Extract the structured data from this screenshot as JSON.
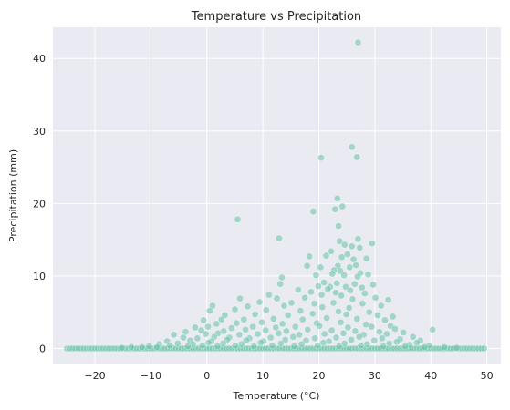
{
  "chart_data": {
    "type": "scatter",
    "title": "Temperature vs Precipitation",
    "xlabel": "Temperature (°C)",
    "ylabel": "Precipitation (mm)",
    "xlim": [
      -27.5,
      52.5
    ],
    "ylim": [
      -2.2,
      44.3
    ],
    "xticks": [
      -20,
      -10,
      0,
      10,
      20,
      30,
      40,
      50
    ],
    "yticks": [
      0,
      10,
      20,
      30,
      40
    ],
    "xtick_labels": [
      "−20",
      "−10",
      "0",
      "10",
      "20",
      "30",
      "40",
      "50"
    ],
    "ytick_labels": [
      "0",
      "10",
      "20",
      "30",
      "40"
    ],
    "grid": true,
    "legend": "none",
    "colors": {
      "point": "#66c2a5",
      "background": "#eaeaf2",
      "grid": "#ffffff"
    },
    "baseline_points": {
      "y": 0,
      "x_range": [
        -25,
        49.5
      ],
      "x_step": 0.5
    },
    "points": [
      [
        27.0,
        42.2
      ],
      [
        25.9,
        27.8
      ],
      [
        26.8,
        26.4
      ],
      [
        20.4,
        26.3
      ],
      [
        23.3,
        20.7
      ],
      [
        22.9,
        19.2
      ],
      [
        24.2,
        19.6
      ],
      [
        19.0,
        18.9
      ],
      [
        5.5,
        17.8
      ],
      [
        23.5,
        16.9
      ],
      [
        12.9,
        15.2
      ],
      [
        27.0,
        15.1
      ],
      [
        29.5,
        14.5
      ],
      [
        23.7,
        14.8
      ],
      [
        24.6,
        14.3
      ],
      [
        25.9,
        14.1
      ],
      [
        27.3,
        13.9
      ],
      [
        22.2,
        13.4
      ],
      [
        25.1,
        13.0
      ],
      [
        21.3,
        12.8
      ],
      [
        24.1,
        12.6
      ],
      [
        18.3,
        12.7
      ],
      [
        28.5,
        12.4
      ],
      [
        26.2,
        12.3
      ],
      [
        17.9,
        11.4
      ],
      [
        23.4,
        11.4
      ],
      [
        26.6,
        11.5
      ],
      [
        20.3,
        11.2
      ],
      [
        25.5,
        11.2
      ],
      [
        22.7,
        10.8
      ],
      [
        23.8,
        10.7
      ],
      [
        27.4,
        10.4
      ],
      [
        22.4,
        10.3
      ],
      [
        24.5,
        10.1
      ],
      [
        28.8,
        10.2
      ],
      [
        13.4,
        9.8
      ],
      [
        19.5,
        10.1
      ],
      [
        26.9,
        9.9
      ],
      [
        13.1,
        8.9
      ],
      [
        20.9,
        9.1
      ],
      [
        23.2,
        9.0
      ],
      [
        26.4,
        8.9
      ],
      [
        29.7,
        8.8
      ],
      [
        19.9,
        8.6
      ],
      [
        22.0,
        8.5
      ],
      [
        24.8,
        8.5
      ],
      [
        27.7,
        8.4
      ],
      [
        16.3,
        8.1
      ],
      [
        21.6,
        8.2
      ],
      [
        25.6,
        8.0
      ],
      [
        18.6,
        7.8
      ],
      [
        23.0,
        7.7
      ],
      [
        28.2,
        7.6
      ],
      [
        11.1,
        7.4
      ],
      [
        20.5,
        7.4
      ],
      [
        24.0,
        7.3
      ],
      [
        30.1,
        7.0
      ],
      [
        32.4,
        6.7
      ],
      [
        5.9,
        6.9
      ],
      [
        12.5,
        6.9
      ],
      [
        17.5,
        7.0
      ],
      [
        26.0,
        6.8
      ],
      [
        9.4,
        6.4
      ],
      [
        15.1,
        6.3
      ],
      [
        19.2,
        6.2
      ],
      [
        22.6,
        6.3
      ],
      [
        27.8,
        6.2
      ],
      [
        1.0,
        5.9
      ],
      [
        7.3,
        5.8
      ],
      [
        13.8,
        5.9
      ],
      [
        20.6,
        5.7
      ],
      [
        25.4,
        5.6
      ],
      [
        31.1,
        5.9
      ],
      [
        0.5,
        5.2
      ],
      [
        5.0,
        5.4
      ],
      [
        10.6,
        5.3
      ],
      [
        16.7,
        5.2
      ],
      [
        23.5,
        5.1
      ],
      [
        29.0,
        5.0
      ],
      [
        3.2,
        4.6
      ],
      [
        8.6,
        4.7
      ],
      [
        14.5,
        4.6
      ],
      [
        18.9,
        4.8
      ],
      [
        24.9,
        4.7
      ],
      [
        30.5,
        4.6
      ],
      [
        33.2,
        4.4
      ],
      [
        -0.6,
        3.9
      ],
      [
        2.6,
        4.0
      ],
      [
        6.6,
        4.0
      ],
      [
        11.9,
        4.1
      ],
      [
        17.1,
        4.0
      ],
      [
        21.4,
        4.2
      ],
      [
        26.8,
        4.1
      ],
      [
        31.8,
        3.9
      ],
      [
        1.7,
        3.4
      ],
      [
        5.3,
        3.5
      ],
      [
        9.8,
        3.6
      ],
      [
        13.5,
        3.4
      ],
      [
        19.6,
        3.5
      ],
      [
        23.9,
        3.6
      ],
      [
        28.4,
        3.3
      ],
      [
        32.8,
        3.1
      ],
      [
        -2.1,
        2.9
      ],
      [
        0.2,
        3.0
      ],
      [
        4.4,
        2.8
      ],
      [
        8.2,
        3.0
      ],
      [
        12.3,
        2.9
      ],
      [
        15.8,
        3.0
      ],
      [
        20.1,
        3.1
      ],
      [
        25.2,
        2.9
      ],
      [
        29.4,
        3.0
      ],
      [
        33.6,
        2.7
      ],
      [
        40.3,
        2.6
      ],
      [
        -3.8,
        2.3
      ],
      [
        -1.0,
        2.5
      ],
      [
        3.0,
        2.4
      ],
      [
        6.9,
        2.6
      ],
      [
        10.5,
        2.5
      ],
      [
        14.2,
        2.4
      ],
      [
        18.0,
        2.6
      ],
      [
        22.3,
        2.5
      ],
      [
        26.5,
        2.4
      ],
      [
        30.8,
        2.3
      ],
      [
        35.1,
        2.2
      ],
      [
        -5.9,
        1.9
      ],
      [
        -0.2,
        2.0
      ],
      [
        2.0,
        2.1
      ],
      [
        5.8,
        1.9
      ],
      [
        9.1,
        2.0
      ],
      [
        12.8,
        2.1
      ],
      [
        16.5,
        1.9
      ],
      [
        21.0,
        2.0
      ],
      [
        24.4,
        2.1
      ],
      [
        28.0,
        1.9
      ],
      [
        32.1,
        2.0
      ],
      [
        36.8,
        1.6
      ],
      [
        -4.2,
        1.5
      ],
      [
        -1.7,
        1.4
      ],
      [
        1.3,
        1.6
      ],
      [
        4.0,
        1.5
      ],
      [
        7.6,
        1.4
      ],
      [
        11.4,
        1.5
      ],
      [
        15.4,
        1.6
      ],
      [
        19.3,
        1.4
      ],
      [
        23.1,
        1.5
      ],
      [
        27.2,
        1.6
      ],
      [
        31.3,
        1.4
      ],
      [
        34.5,
        1.3
      ],
      [
        38.1,
        1.1
      ],
      [
        -7.1,
        1.0
      ],
      [
        -3.0,
        1.1
      ],
      [
        0.8,
        1.0
      ],
      [
        3.6,
        1.2
      ],
      [
        7.0,
        1.1
      ],
      [
        10.1,
        1.0
      ],
      [
        14.0,
        1.2
      ],
      [
        17.7,
        1.1
      ],
      [
        21.8,
        1.0
      ],
      [
        25.8,
        1.2
      ],
      [
        29.9,
        1.1
      ],
      [
        33.9,
        0.9
      ],
      [
        37.5,
        0.8
      ],
      [
        -8.5,
        0.6
      ],
      [
        -5.2,
        0.7
      ],
      [
        -2.5,
        0.6
      ],
      [
        0.3,
        0.8
      ],
      [
        2.9,
        0.7
      ],
      [
        6.2,
        0.6
      ],
      [
        9.6,
        0.8
      ],
      [
        13.2,
        0.7
      ],
      [
        16.9,
        0.6
      ],
      [
        20.8,
        0.8
      ],
      [
        24.6,
        0.7
      ],
      [
        28.6,
        0.6
      ],
      [
        32.6,
        0.7
      ],
      [
        36.2,
        0.5
      ],
      [
        39.7,
        0.4
      ],
      [
        -10.3,
        0.3
      ],
      [
        -6.6,
        0.4
      ],
      [
        -3.4,
        0.3
      ],
      [
        -0.8,
        0.4
      ],
      [
        1.9,
        0.3
      ],
      [
        5.1,
        0.4
      ],
      [
        8.4,
        0.3
      ],
      [
        11.7,
        0.4
      ],
      [
        15.6,
        0.3
      ],
      [
        19.8,
        0.4
      ],
      [
        23.6,
        0.3
      ],
      [
        27.5,
        0.4
      ],
      [
        31.5,
        0.3
      ],
      [
        35.4,
        0.3
      ],
      [
        38.9,
        0.2
      ],
      [
        42.4,
        0.2
      ],
      [
        -13.5,
        0.2
      ],
      [
        -11.6,
        0.2
      ],
      [
        -8.9,
        0.2
      ],
      [
        -15.2,
        0.1
      ],
      [
        44.6,
        0.1
      ]
    ]
  }
}
